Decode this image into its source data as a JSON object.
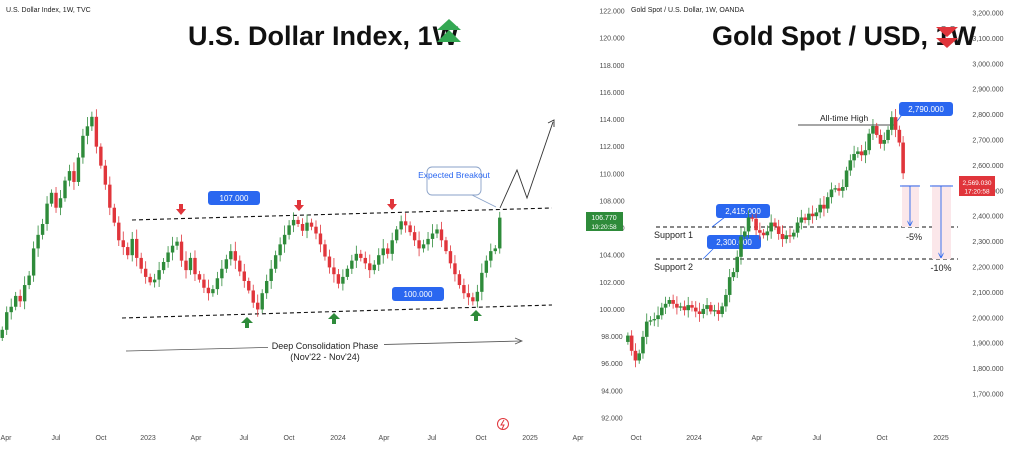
{
  "chart_data": [
    {
      "type": "candlestick",
      "header": "U.S. Dollar Index, 1W, TVC",
      "title": "U.S. Dollar Index, 1W",
      "trend_icon": "double-up-arrow-icon",
      "up_color": "#2e8b3a",
      "down_color": "#e0353b",
      "y_ticks": [
        "122.000",
        "120.000",
        "118.000",
        "116.000",
        "114.000",
        "112.000",
        "110.000",
        "108.000",
        "106.000",
        "104.000",
        "102.000",
        "100.000",
        "98.000",
        "96.000",
        "94.000",
        "92.000"
      ],
      "x_ticks": [
        "Apr",
        "Jul",
        "Oct",
        "2023",
        "Apr",
        "Jul",
        "Oct",
        "2024",
        "Apr",
        "Jul",
        "Oct",
        "2025",
        "Apr"
      ],
      "ylim": [
        91.5,
        122.5
      ],
      "price_label": "106.770",
      "countdown_label": "19:20:58",
      "levels": [
        {
          "label": "107.000",
          "value": 107.0
        },
        {
          "label": "100.000",
          "value": 100.0
        }
      ],
      "annotations": [
        "Expected Breakout",
        "Deep Consolidation Phase",
        "(Nov'22 - Nov'24)"
      ],
      "series": [
        {
          "x": "Apr",
          "values": [
            98.5,
            99.8,
            100.2,
            101.0,
            100.6,
            101.8,
            102.5
          ]
        },
        {
          "x": "Jul",
          "values": [
            104.5,
            105.5,
            106.3,
            107.8,
            108.6,
            107.5,
            108.2,
            109.5,
            110.2,
            109.4,
            111.2,
            112.8,
            113.5,
            114.2,
            112.0
          ]
        },
        {
          "x": "Oct",
          "values": [
            110.6,
            109.2,
            107.5,
            106.4,
            105.1,
            104.6,
            104.0,
            105.2,
            103.8,
            103.0,
            102.4,
            102.0,
            102.2,
            102.9,
            103.5,
            104.2,
            104.7
          ]
        },
        {
          "x": "2023",
          "values": [
            105.0,
            103.6,
            102.9,
            103.8,
            102.6,
            102.2,
            101.6,
            101.2,
            101.5,
            102.3,
            103.0,
            103.7,
            104.3,
            103.6,
            102.8,
            102.1,
            101.4,
            100.5,
            100.0
          ]
        },
        {
          "x": "Oct",
          "values": [
            101.2,
            102.1,
            103.0,
            104.0,
            104.8,
            105.5,
            106.2,
            106.6,
            106.3,
            105.8,
            106.4,
            106.1,
            105.6,
            104.8,
            103.9
          ]
        },
        {
          "x": "2024",
          "values": [
            103.1,
            102.6,
            101.9,
            102.4,
            103.0,
            103.6,
            104.1,
            103.8,
            103.4,
            102.9,
            103.3,
            104.0,
            104.5,
            104.1,
            105.1,
            105.9,
            106.5,
            106.2,
            105.7,
            105.1
          ]
        },
        {
          "x": "Jul",
          "values": [
            104.5,
            104.8,
            105.2,
            105.6,
            105.9,
            105.1,
            104.3,
            103.4,
            102.6,
            101.8,
            101.2,
            100.9,
            100.6,
            101.3,
            102.7,
            103.6,
            104.3,
            104.5,
            106.77
          ]
        }
      ]
    },
    {
      "type": "candlestick",
      "header": "Gold Spot / U.S. Dollar, 1W, OANDA",
      "title": "Gold Spot / USD, 1W",
      "trend_icon": "double-down-arrow-icon",
      "up_color": "#2e8b3a",
      "down_color": "#e0353b",
      "y_ticks": [
        "3,200.000",
        "3,100.000",
        "3,000.000",
        "2,900.000",
        "2,800.000",
        "2,700.000",
        "2,600.000",
        "2,500.000",
        "2,400.000",
        "2,300.000",
        "2,200.000",
        "2,100.000",
        "2,000.000",
        "1,900.000",
        "1,800.000",
        "1,700.000"
      ],
      "x_ticks": [
        "Oct",
        "2024",
        "Apr",
        "Jul",
        "Oct",
        "2025"
      ],
      "ylim": [
        1680,
        3220
      ],
      "price_label": "2,569.030",
      "countdown_label": "17:20:58",
      "levels": [
        {
          "label": "2,415.000",
          "name": "Support 1",
          "value": 2415
        },
        {
          "label": "2,300.000",
          "name": "Support 2",
          "value": 2300
        },
        {
          "label": "2,790.000",
          "name": "All-time High",
          "value": 2790
        }
      ],
      "drawdowns": [
        "-5%",
        "-10%"
      ],
      "series": [
        {
          "x": "Oct",
          "values": [
            1930,
            1870,
            1832,
            1860,
            1925,
            1985,
            1990,
            1995,
            2010,
            2040,
            2055,
            2070,
            2055,
            2040,
            2045
          ]
        },
        {
          "x": "2024",
          "values": [
            2030,
            2050,
            2040,
            2025,
            2015,
            2035,
            2050,
            2025,
            2030,
            2015,
            2045,
            2090,
            2160,
            2180,
            2240,
            2320,
            2340,
            2395,
            2390
          ]
        },
        {
          "x": "Apr",
          "values": [
            2345,
            2335,
            2325,
            2340,
            2375,
            2360,
            2330,
            2310,
            2325,
            2320,
            2335,
            2375,
            2395,
            2385
          ]
        },
        {
          "x": "Jul",
          "values": [
            2410,
            2400,
            2415,
            2445,
            2430,
            2475,
            2505,
            2510,
            2500,
            2515,
            2580,
            2620,
            2645,
            2655,
            2640
          ]
        },
        {
          "x": "Oct",
          "values": [
            2660,
            2725,
            2755,
            2720,
            2685,
            2700,
            2740,
            2790,
            2740,
            2690,
            2569.03
          ]
        }
      ]
    }
  ]
}
